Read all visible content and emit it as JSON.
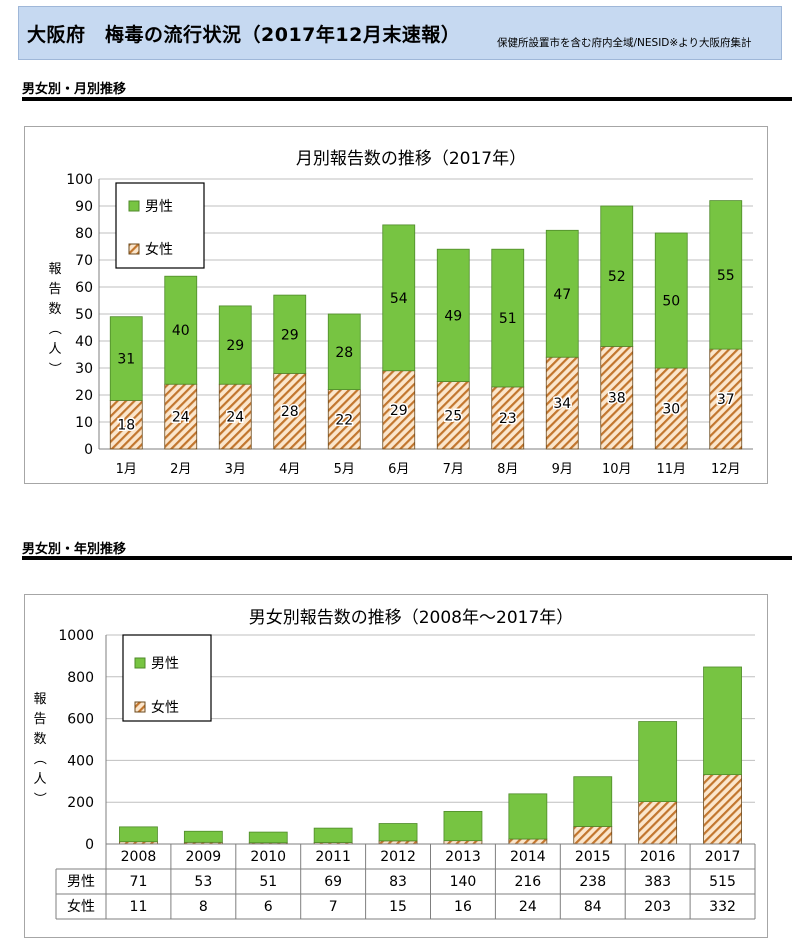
{
  "header": {
    "title": "大阪府　梅毒の流行状況（2017年12月末速報）",
    "note": "保健所設置市を含む府内全域/NESID※より大阪府集計"
  },
  "sections": {
    "monthly": "男女別・月別推移",
    "yearly": "男女別・年別推移"
  },
  "colors": {
    "male": "#77c442",
    "female_stripe": "#c2762e",
    "female_bg": "#fbe6cc",
    "bar_edge": "#6b4a1e"
  },
  "chart_data": [
    {
      "type": "bar",
      "stacked": true,
      "title": "月別報告数の推移（2017年）",
      "ylabel": "報告数（人）",
      "ylim": [
        0,
        100
      ],
      "yticks": [
        0,
        10,
        20,
        30,
        40,
        50,
        60,
        70,
        80,
        90,
        100
      ],
      "grid": true,
      "legend_position": "top-left",
      "categories": [
        "1月",
        "2月",
        "3月",
        "4月",
        "5月",
        "6月",
        "7月",
        "8月",
        "9月",
        "10月",
        "11月",
        "12月"
      ],
      "series": [
        {
          "name": "女性",
          "values": [
            18,
            24,
            24,
            28,
            22,
            29,
            25,
            23,
            34,
            38,
            30,
            37
          ]
        },
        {
          "name": "男性",
          "values": [
            31,
            40,
            29,
            29,
            28,
            54,
            49,
            51,
            47,
            52,
            50,
            55
          ]
        }
      ]
    },
    {
      "type": "bar",
      "stacked": true,
      "title": "男女別報告数の推移（2008年～2017年）",
      "ylabel": "報告数（人）",
      "ylim": [
        0,
        1000
      ],
      "yticks": [
        0,
        200,
        400,
        600,
        800,
        1000
      ],
      "grid": true,
      "legend_position": "top-left",
      "categories": [
        "2008",
        "2009",
        "2010",
        "2011",
        "2012",
        "2013",
        "2014",
        "2015",
        "2016",
        "2017"
      ],
      "series": [
        {
          "name": "女性",
          "values": [
            11,
            8,
            6,
            7,
            15,
            16,
            24,
            84,
            203,
            332
          ]
        },
        {
          "name": "男性",
          "values": [
            71,
            53,
            51,
            69,
            83,
            140,
            216,
            238,
            383,
            515
          ]
        }
      ],
      "table_rows": [
        {
          "label": "男性",
          "values": [
            "71",
            "53",
            "51",
            "69",
            "83",
            "140",
            "216",
            "238",
            "383",
            "515"
          ]
        },
        {
          "label": "女性",
          "values": [
            "11",
            "8",
            "6",
            "7",
            "15",
            "16",
            "24",
            "84",
            "203",
            "332"
          ]
        }
      ]
    }
  ]
}
